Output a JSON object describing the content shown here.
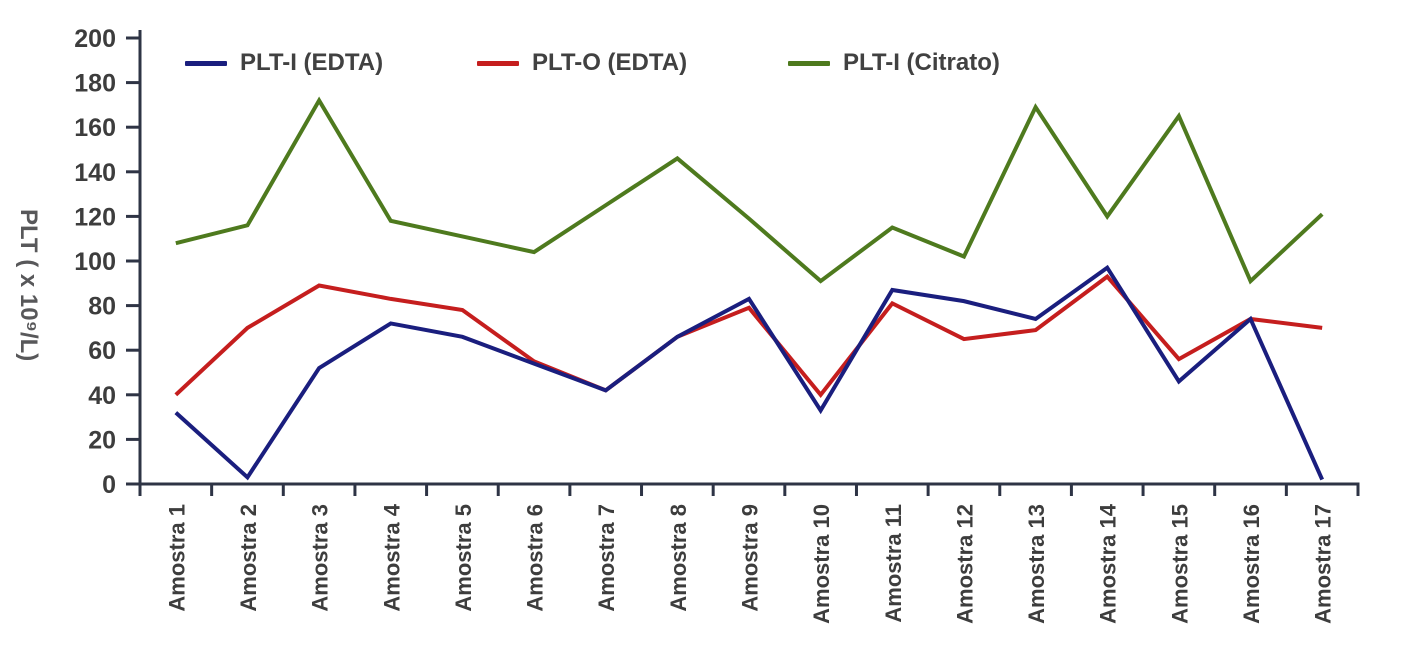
{
  "chart_data": {
    "type": "line",
    "title": "",
    "xlabel": "",
    "ylabel": "PLT ( x 10⁹/L)",
    "ylim": [
      0,
      200
    ],
    "yticks": [
      0,
      20,
      40,
      60,
      80,
      100,
      120,
      140,
      160,
      180,
      200
    ],
    "grid": false,
    "legend_position": "top",
    "categories": [
      "Amostra 1",
      "Amostra 2",
      "Amostra 3",
      "Amostra 4",
      "Amostra 5",
      "Amostra 6",
      "Amostra 7",
      "Amostra 8",
      "Amostra 9",
      "Amostra 10",
      "Amostra 11",
      "Amostra 12",
      "Amostra 13",
      "Amostra 14",
      "Amostra 15",
      "Amostra 16",
      "Amostra 17"
    ],
    "series": [
      {
        "name": "PLT-I (EDTA)",
        "color": "#1A1E7E",
        "values": [
          32,
          3,
          52,
          72,
          66,
          54,
          42,
          66,
          83,
          33,
          87,
          82,
          74,
          97,
          46,
          74,
          2
        ]
      },
      {
        "name": "PLT-O (EDTA)",
        "color": "#C51E1E",
        "values": [
          40,
          70,
          89,
          83,
          78,
          55,
          42,
          66,
          79,
          40,
          81,
          65,
          69,
          93,
          56,
          74,
          70
        ]
      },
      {
        "name": "PLT-I (Citrato)",
        "color": "#4E7A1E",
        "values": [
          108,
          116,
          172,
          118,
          111,
          104,
          125,
          146,
          119,
          91,
          115,
          102,
          169,
          120,
          165,
          91,
          121
        ]
      }
    ],
    "axis_color": "#2E3445",
    "tick_label_color": "#3D3D3D",
    "axis_title_color": "#58585A"
  }
}
